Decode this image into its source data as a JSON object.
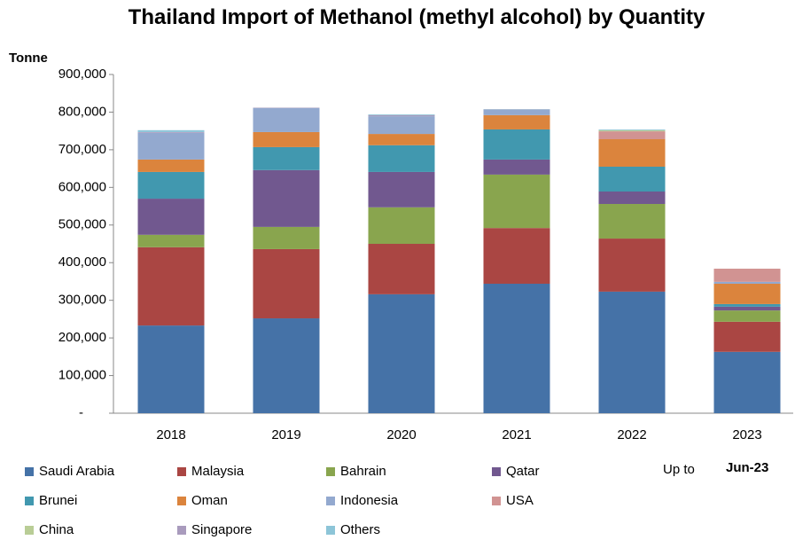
{
  "chart_data": {
    "type": "stacked_bar",
    "title": "Thailand Import of Methanol (methyl alcohol) by Quantity",
    "y_label": "Tonne",
    "annotations": [
      "Up to",
      "Jun-23"
    ],
    "categories": [
      "2018",
      "2019",
      "2020",
      "2021",
      "2022",
      "2023"
    ],
    "series": [
      {
        "name": "Saudi Arabia",
        "color": "#4572a7",
        "values": [
          233000,
          252000,
          316000,
          344000,
          323000,
          163000
        ]
      },
      {
        "name": "Malaysia",
        "color": "#aa4643",
        "values": [
          208000,
          184000,
          134000,
          148000,
          141000,
          80000
        ]
      },
      {
        "name": "Bahrain",
        "color": "#89a54e",
        "values": [
          33000,
          59000,
          97000,
          142000,
          92000,
          30000
        ]
      },
      {
        "name": "Qatar",
        "color": "#71588f",
        "values": [
          96000,
          151000,
          94000,
          40000,
          33000,
          10000
        ]
      },
      {
        "name": "Brunei",
        "color": "#4198af",
        "values": [
          71000,
          61000,
          71000,
          80000,
          66000,
          7000
        ]
      },
      {
        "name": "Oman",
        "color": "#db843d",
        "values": [
          33000,
          40000,
          30000,
          38000,
          73000,
          54000
        ]
      },
      {
        "name": "Indonesia",
        "color": "#93a9cf",
        "values": [
          71000,
          64000,
          47000,
          14000,
          0,
          5000
        ]
      },
      {
        "name": "USA",
        "color": "#d19392",
        "values": [
          0,
          0,
          0,
          0,
          21000,
          35000
        ]
      },
      {
        "name": "China",
        "color": "#b9cd96",
        "values": [
          0,
          0,
          0,
          0,
          3000,
          0
        ]
      },
      {
        "name": "Singapore",
        "color": "#a99bbd",
        "values": [
          2000,
          1000,
          3000,
          1000,
          0,
          0
        ]
      },
      {
        "name": "Others",
        "color": "#8dc5d8",
        "values": [
          5000,
          0,
          2000,
          1000,
          2000,
          0
        ]
      }
    ],
    "ylim": [
      0,
      900000
    ],
    "yticks": [
      {
        "value": 0,
        "label": "-"
      },
      {
        "value": 100000,
        "label": "100,000"
      },
      {
        "value": 200000,
        "label": "200,000"
      },
      {
        "value": 300000,
        "label": "300,000"
      },
      {
        "value": 400000,
        "label": "400,000"
      },
      {
        "value": 500000,
        "label": "500,000"
      },
      {
        "value": 600000,
        "label": "600,000"
      },
      {
        "value": 700000,
        "label": "700,000"
      },
      {
        "value": 800000,
        "label": "800,000"
      },
      {
        "value": 900000,
        "label": "900,000"
      }
    ],
    "grid": false
  }
}
